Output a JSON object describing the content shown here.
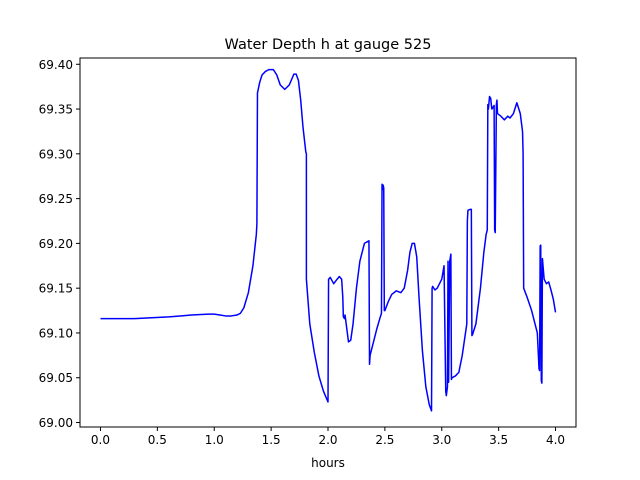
{
  "chart_data": {
    "type": "line",
    "title": "Water Depth h at gauge 525",
    "xlabel": "hours",
    "ylabel": "",
    "xlim": [
      -0.18,
      4.18
    ],
    "ylim": [
      68.995,
      69.407
    ],
    "xticks": [
      0.0,
      0.5,
      1.0,
      1.5,
      2.0,
      2.5,
      3.0,
      3.5,
      4.0
    ],
    "xtick_labels": [
      "0.0",
      "0.5",
      "1.0",
      "1.5",
      "2.0",
      "2.5",
      "3.0",
      "3.5",
      "4.0"
    ],
    "yticks": [
      69.0,
      69.05,
      69.1,
      69.15,
      69.2,
      69.25,
      69.3,
      69.35,
      69.4
    ],
    "ytick_labels": [
      "69.00",
      "69.05",
      "69.10",
      "69.15",
      "69.20",
      "69.25",
      "69.30",
      "69.35",
      "69.40"
    ],
    "grid": false,
    "series": [
      {
        "color": "#0000ff",
        "x": [
          0.0,
          0.3,
          0.6,
          0.7,
          0.8,
          0.95,
          1.0,
          1.05,
          1.1,
          1.15,
          1.2,
          1.23,
          1.26,
          1.3,
          1.34,
          1.37,
          1.375,
          1.38,
          1.4,
          1.42,
          1.45,
          1.48,
          1.52,
          1.55,
          1.58,
          1.62,
          1.66,
          1.7,
          1.72,
          1.74,
          1.76,
          1.78,
          1.805,
          1.81,
          1.81,
          1.84,
          1.88,
          1.92,
          1.96,
          2.0,
          2.005,
          2.02,
          2.05,
          2.08,
          2.1,
          2.12,
          2.13,
          2.135,
          2.145,
          2.15,
          2.18,
          2.2,
          2.22,
          2.25,
          2.28,
          2.32,
          2.36,
          2.365,
          2.37,
          2.4,
          2.43,
          2.46,
          2.47,
          2.475,
          2.48,
          2.485,
          2.49,
          2.495,
          2.5,
          2.53,
          2.56,
          2.6,
          2.64,
          2.67,
          2.7,
          2.72,
          2.74,
          2.76,
          2.78,
          2.8,
          2.83,
          2.86,
          2.89,
          2.91,
          2.915,
          2.92,
          2.94,
          2.96,
          2.98,
          3.0,
          3.02,
          3.035,
          3.04,
          3.05,
          3.055,
          3.06,
          3.07,
          3.08,
          3.085,
          3.09,
          3.12,
          3.15,
          3.18,
          3.22,
          3.225,
          3.23,
          3.25,
          3.26,
          3.265,
          3.27,
          3.3,
          3.34,
          3.37,
          3.39,
          3.4,
          3.405,
          3.41,
          3.42,
          3.43,
          3.44,
          3.46,
          3.465,
          3.47,
          3.48,
          3.485,
          3.49,
          3.52,
          3.55,
          3.58,
          3.6,
          3.63,
          3.66,
          3.69,
          3.71,
          3.715,
          3.72,
          3.75,
          3.79,
          3.84,
          3.855,
          3.86,
          3.865,
          3.87,
          3.875,
          3.88,
          3.885,
          3.89,
          3.9,
          3.92,
          3.94,
          3.96,
          3.98,
          4.0
        ],
        "y": [
          69.116,
          69.116,
          69.118,
          69.119,
          69.12,
          69.121,
          69.121,
          69.12,
          69.119,
          69.119,
          69.12,
          69.122,
          69.128,
          69.145,
          69.175,
          69.21,
          69.222,
          69.368,
          69.38,
          69.388,
          69.392,
          69.394,
          69.394,
          69.388,
          69.377,
          69.372,
          69.377,
          69.389,
          69.389,
          69.382,
          69.36,
          69.33,
          69.302,
          69.3,
          69.16,
          69.11,
          69.078,
          69.052,
          69.035,
          69.023,
          69.16,
          69.162,
          69.155,
          69.16,
          69.163,
          69.16,
          69.14,
          69.118,
          69.116,
          69.12,
          69.09,
          69.092,
          69.11,
          69.15,
          69.18,
          69.2,
          69.203,
          69.065,
          69.075,
          69.09,
          69.105,
          69.118,
          69.122,
          69.266,
          69.26,
          69.265,
          69.262,
          69.125,
          69.125,
          69.135,
          69.143,
          69.147,
          69.145,
          69.15,
          69.17,
          69.19,
          69.2,
          69.2,
          69.185,
          69.14,
          69.08,
          69.04,
          69.02,
          69.013,
          69.15,
          69.152,
          69.148,
          69.15,
          69.155,
          69.16,
          69.175,
          69.035,
          69.03,
          69.04,
          69.18,
          69.045,
          69.18,
          69.188,
          69.048,
          69.05,
          69.052,
          69.056,
          69.075,
          69.11,
          69.225,
          69.237,
          69.238,
          69.238,
          69.097,
          69.098,
          69.11,
          69.15,
          69.19,
          69.21,
          69.215,
          69.355,
          69.35,
          69.364,
          69.362,
          69.35,
          69.354,
          69.215,
          69.212,
          69.355,
          69.36,
          69.345,
          69.342,
          69.338,
          69.342,
          69.34,
          69.345,
          69.357,
          69.345,
          69.325,
          69.3,
          69.15,
          69.14,
          69.125,
          69.1,
          69.06,
          69.058,
          69.197,
          69.198,
          69.047,
          69.044,
          69.183,
          69.175,
          69.16,
          69.155,
          69.157,
          69.148,
          69.138,
          69.123
        ]
      }
    ]
  }
}
